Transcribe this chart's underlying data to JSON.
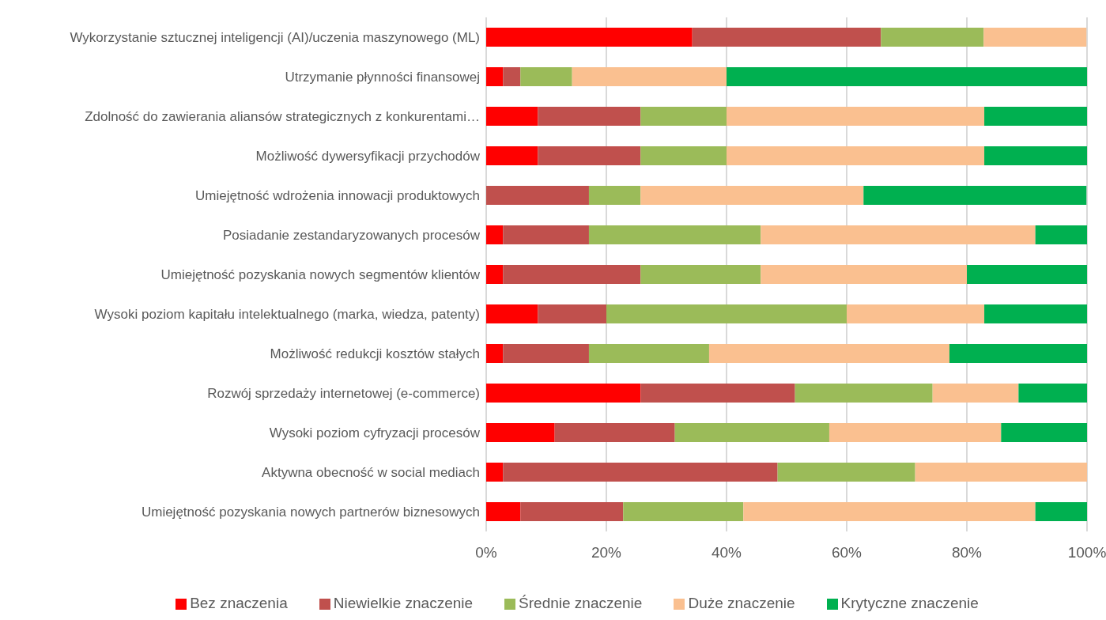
{
  "chart_data": {
    "type": "bar",
    "orientation": "horizontal",
    "stacked": true,
    "categories": [
      "Wykorzystanie sztucznej inteligencji (AI)/uczenia maszynowego (ML)",
      "Utrzymanie płynności finansowej",
      "Zdolność do zawierania aliansów strategicznych z konkurentami…",
      "Możliwość dywersyfikacji przychodów",
      "Umiejętność wdrożenia innowacji produktowych",
      "Posiadanie zestandaryzowanych procesów",
      "Umiejętność pozyskania nowych segmentów klientów",
      "Wysoki poziom kapitału intelektualnego (marka, wiedza, patenty)",
      "Możliwość redukcji kosztów stałych",
      "Rozwój sprzedaży internetowej (e-commerce)",
      "Wysoki poziom cyfryzacji procesów",
      "Aktywna obecność w social mediach",
      "Umiejętność pozyskania nowych partnerów biznesowych"
    ],
    "series": [
      {
        "name": "Bez znaczenia",
        "color": "#ff0000",
        "values": [
          34.3,
          2.8,
          8.6,
          8.6,
          0,
          2.8,
          2.8,
          8.6,
          2.8,
          25.7,
          11.4,
          2.8,
          5.7
        ]
      },
      {
        "name": "Niewielkie znaczenie",
        "color": "#c0504d",
        "values": [
          31.4,
          2.9,
          17.1,
          17.1,
          17.1,
          14.3,
          22.9,
          11.4,
          14.3,
          25.7,
          20,
          45.7,
          17.1
        ]
      },
      {
        "name": "Średnie znaczenie",
        "color": "#9bbb59",
        "values": [
          17.1,
          8.6,
          14.3,
          14.3,
          8.6,
          28.6,
          20,
          40,
          20,
          22.9,
          25.7,
          22.9,
          20
        ]
      },
      {
        "name": "Duże znaczenie",
        "color": "#fac090",
        "values": [
          17.1,
          25.7,
          42.9,
          42.9,
          37.1,
          45.7,
          34.3,
          22.9,
          40,
          14.3,
          28.6,
          28.6,
          48.6
        ]
      },
      {
        "name": "Krytyczne znaczenie",
        "color": "#00b050",
        "values": [
          0,
          60,
          17.1,
          17.1,
          37.1,
          8.6,
          20,
          17.1,
          22.9,
          11.4,
          14.3,
          0,
          8.6
        ]
      }
    ],
    "xlim": [
      0,
      100
    ],
    "xticks": [
      {
        "value": 0,
        "label": "0%"
      },
      {
        "value": 20,
        "label": "20%"
      },
      {
        "value": 40,
        "label": "40%"
      },
      {
        "value": 60,
        "label": "60%"
      },
      {
        "value": 80,
        "label": "80%"
      },
      {
        "value": 100,
        "label": "100%"
      }
    ],
    "grid": "x",
    "legend": "bottom"
  }
}
